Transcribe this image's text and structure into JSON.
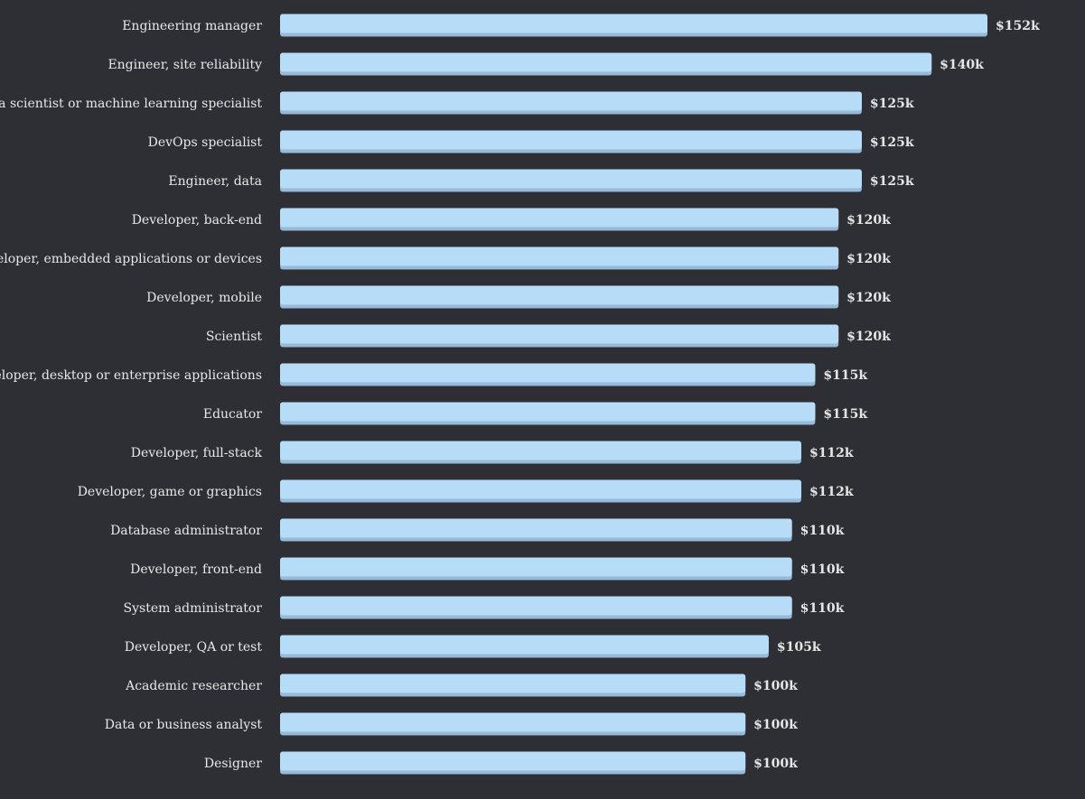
{
  "chart_data": {
    "type": "bar",
    "orientation": "horizontal",
    "title": "",
    "xlabel": "",
    "ylabel": "",
    "grid": false,
    "legend": "none",
    "value_prefix": "$",
    "value_suffix": "k",
    "xlim": [
      0,
      152
    ],
    "categories": [
      "Engineering manager",
      "Engineer, site reliability",
      "Data scientist or machine learning specialist",
      "DevOps specialist",
      "Engineer, data",
      "Developer, back-end",
      "Developer, embedded applications or devices",
      "Developer, mobile",
      "Scientist",
      "Developer, desktop or enterprise applications",
      "Educator",
      "Developer, full-stack",
      "Developer, game or graphics",
      "Database administrator",
      "Developer, front-end",
      "System administrator",
      "Developer, QA or test",
      "Academic researcher",
      "Data or business analyst",
      "Designer"
    ],
    "values": [
      152,
      140,
      125,
      125,
      125,
      120,
      120,
      120,
      120,
      115,
      115,
      112,
      112,
      110,
      110,
      110,
      105,
      100,
      100,
      100
    ],
    "value_labels": [
      "$152k",
      "$140k",
      "$125k",
      "$125k",
      "$125k",
      "$120k",
      "$120k",
      "$120k",
      "$120k",
      "$115k",
      "$115k",
      "$112k",
      "$112k",
      "$110k",
      "$110k",
      "$110k",
      "$105k",
      "$100k",
      "$100k",
      "$100k"
    ],
    "colors": {
      "background": "#2d2f34",
      "bar": "#b7dcf7",
      "bar_shadow": "#96bad7",
      "label": "#e8e8e8",
      "value_label": "#e6e6e6"
    }
  }
}
